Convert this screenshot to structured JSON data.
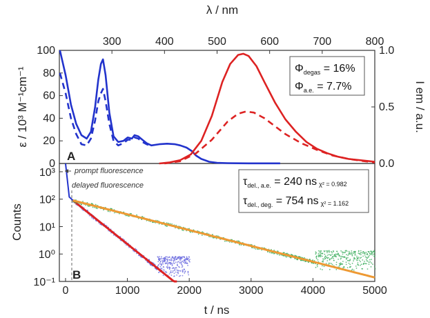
{
  "chart_data": [
    {
      "panel": "A",
      "type": "line",
      "xlabel": "λ / nm",
      "xlim": [
        200,
        800
      ],
      "xticks": [
        300,
        400,
        500,
        600,
        700,
        800
      ],
      "ylabel": "ε / 10³ M⁻¹cm⁻¹",
      "ylim": [
        0,
        100
      ],
      "yticks": [
        0,
        20,
        40,
        60,
        80,
        100
      ],
      "y2label": "I em / a.u.",
      "y2lim": [
        0,
        1.0
      ],
      "y2ticks": [
        0.0,
        0.5,
        1.0
      ],
      "annotations": [
        "Φ degas = 16%",
        "Φ a.e. = 7.7%"
      ],
      "series": [
        {
          "color": "#2233cc",
          "style": "solid",
          "axis": "left",
          "x": [
            201,
            212,
            222,
            232,
            242,
            252,
            260,
            268,
            274,
            279,
            283,
            288,
            295,
            303,
            312,
            322,
            330,
            338,
            343,
            350,
            358,
            366,
            375,
            390,
            405,
            420,
            430,
            442,
            452,
            460,
            470,
            485,
            500,
            520,
            540,
            560,
            580,
            600,
            620
          ],
          "y": [
            100,
            78,
            52,
            35,
            25,
            22,
            28,
            50,
            74,
            88,
            92,
            78,
            45,
            24,
            19,
            20,
            23,
            22,
            25,
            24,
            21,
            18,
            16,
            17,
            17.5,
            17,
            16,
            14,
            11,
            7,
            4,
            1.5,
            0.6,
            0.3,
            0.2,
            0.1,
            0.1,
            0.1,
            0.1
          ]
        },
        {
          "color": "#2233cc",
          "style": "dashed",
          "axis": "left",
          "x": [
            201,
            212,
            222,
            232,
            242,
            252,
            260,
            268,
            274,
            279,
            283,
            288,
            295,
            303,
            312,
            322,
            330,
            338,
            343,
            350,
            358,
            366,
            375
          ],
          "y": [
            80,
            62,
            40,
            26,
            17,
            16,
            22,
            38,
            55,
            62,
            66,
            55,
            35,
            20,
            16,
            18,
            21,
            21,
            23,
            22,
            19,
            17,
            15.5
          ]
        },
        {
          "color": "#dd2222",
          "style": "solid",
          "axis": "right",
          "x": [
            390,
            410,
            430,
            450,
            470,
            490,
            510,
            525,
            540,
            550,
            560,
            575,
            590,
            610,
            630,
            650,
            670,
            690,
            710,
            730,
            750,
            770,
            790,
            800
          ],
          "y": [
            0,
            0.01,
            0.03,
            0.08,
            0.2,
            0.42,
            0.72,
            0.88,
            0.96,
            0.97,
            0.95,
            0.86,
            0.72,
            0.54,
            0.39,
            0.28,
            0.19,
            0.13,
            0.09,
            0.06,
            0.04,
            0.03,
            0.02,
            0.015
          ]
        },
        {
          "color": "#dd2222",
          "style": "dashed",
          "axis": "right",
          "x": [
            400,
            430,
            460,
            490,
            520,
            540,
            555,
            570,
            590,
            610,
            630,
            660,
            690,
            720,
            750,
            780,
            800
          ],
          "y": [
            0,
            0.02,
            0.09,
            0.21,
            0.37,
            0.44,
            0.46,
            0.45,
            0.4,
            0.33,
            0.26,
            0.18,
            0.12,
            0.07,
            0.04,
            0.02,
            0.01
          ]
        }
      ]
    },
    {
      "panel": "B",
      "type": "scatter",
      "xlabel": "t / ns",
      "xlim": [
        -100,
        5000
      ],
      "xticks": [
        0,
        1000,
        2000,
        3000,
        4000,
        5000
      ],
      "ylabel": "Counts",
      "yscale": "log",
      "ylim": [
        0.1,
        2000
      ],
      "yticks": [
        "10⁻¹",
        "10⁰",
        "10¹",
        "10²",
        "10³"
      ],
      "annotations": [
        "prompt fluorescence",
        "delayed fluorescence"
      ],
      "legend_text": [
        {
          "label": "τdel., a.e. = 240 ns",
          "chi": "χ² = 0.982"
        },
        {
          "label": "τdel., deg. = 754 ns",
          "chi": "χ² = 1.162"
        }
      ],
      "series": [
        {
          "color": "#6666dd",
          "kind": "data",
          "tau": 240,
          "x_end": 2000,
          "noise_floor": 0.3
        },
        {
          "color": "#dd2222",
          "kind": "fit",
          "tau": 240,
          "x_end": 1800
        },
        {
          "color": "#33aa55",
          "kind": "data",
          "tau": 754,
          "x_end": 5000,
          "noise_floor": 0.5
        },
        {
          "color": "#ee9933",
          "kind": "fit",
          "tau": 754,
          "x_end": 5000
        }
      ],
      "t0": 120,
      "A0": 90
    }
  ]
}
